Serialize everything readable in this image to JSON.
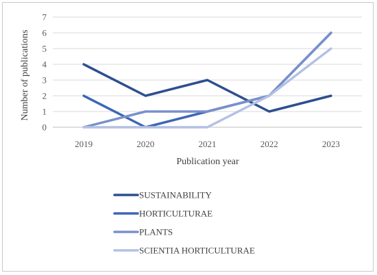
{
  "chart_data": {
    "type": "line",
    "title": "",
    "xlabel": "Publication year",
    "ylabel": "Number of publications",
    "categories": [
      "2019",
      "2020",
      "2021",
      "2022",
      "2023"
    ],
    "ylim": [
      0,
      7
    ],
    "yticks": [
      "0",
      "1",
      "2",
      "3",
      "4",
      "5",
      "6",
      "7"
    ],
    "grid": true,
    "legend_position": "bottom",
    "series": [
      {
        "name": "SUSTAINABILITY",
        "color": "#2e4f8f",
        "values": [
          4,
          2,
          3,
          1,
          2
        ]
      },
      {
        "name": "HORTICULTURAE",
        "color": "#3c67b5",
        "values": [
          2,
          0,
          1,
          2,
          6
        ]
      },
      {
        "name": "PLANTS",
        "color": "#7a90cc",
        "values": [
          0,
          1,
          1,
          2,
          6
        ]
      },
      {
        "name": "SCIENTIA HORTICULTURAE",
        "color": "#b3c1e3",
        "values": [
          0,
          0,
          0,
          2,
          5
        ]
      }
    ]
  }
}
